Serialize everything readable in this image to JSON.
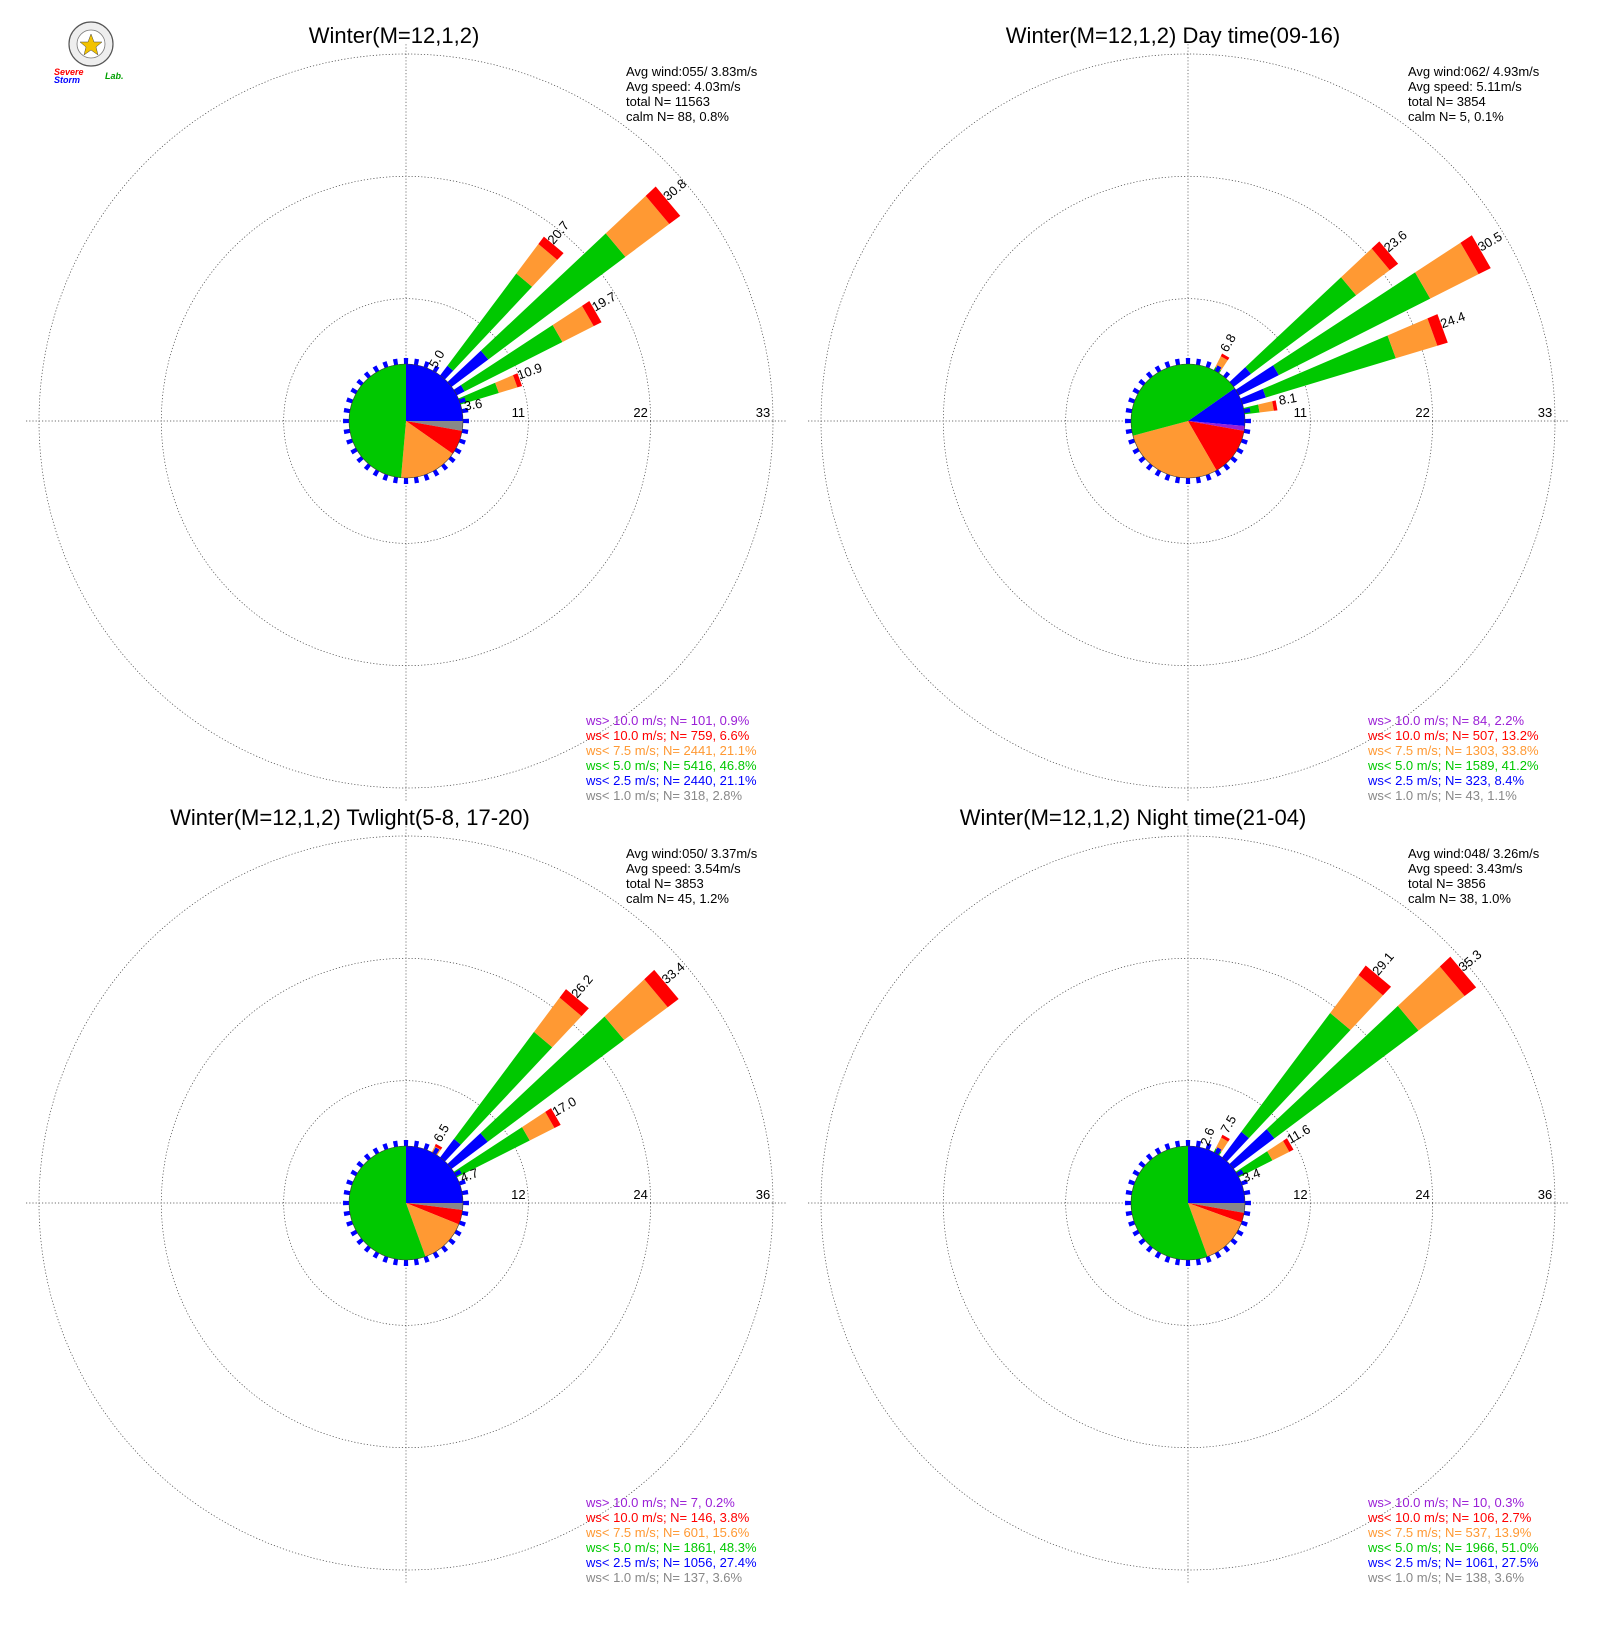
{
  "logo": {
    "text_a": "Severe",
    "text_b": "Storm",
    "text_c": "Lab."
  },
  "colors": {
    "gt10": "#9a1fd6",
    "lt10": "#ff0000",
    "lt7_5": "#ff9933",
    "lt5": "#00c800",
    "lt2_5": "#0000ff",
    "lt1": "#888888"
  },
  "chart_data": [
    {
      "type": "wind-rose",
      "title": "Winter(M=12,1,2)",
      "stats": [
        "Avg wind:055/ 3.83m/s",
        "Avg speed: 4.03m/s",
        "total N=      11563",
        "calm N=      88,   0.8%"
      ],
      "ring_labels": [
        "11",
        "22",
        "33"
      ],
      "rmax": 33,
      "radial_values": [
        {
          "dir_deg": 30,
          "label": "5.0",
          "value": 5.0
        },
        {
          "dir_deg": 40,
          "label": "20.7",
          "value": 20.7
        },
        {
          "dir_deg": 50,
          "label": "30.8",
          "value": 30.8
        },
        {
          "dir_deg": 60,
          "label": "19.7",
          "value": 19.7
        },
        {
          "dir_deg": 70,
          "label": "10.9",
          "value": 10.9
        },
        {
          "dir_deg": 80,
          "label": "3.6",
          "value": 3.6
        }
      ],
      "center_pie": [
        {
          "cls": "lt2_5",
          "from": 0,
          "to": 90
        },
        {
          "cls": "lt1",
          "from": 90,
          "to": 100
        },
        {
          "cls": "lt10",
          "from": 100,
          "to": 125
        },
        {
          "cls": "lt7_5",
          "from": 125,
          "to": 185
        },
        {
          "cls": "lt5",
          "from": 185,
          "to": 360
        }
      ],
      "legend": [
        {
          "cls": "gt10",
          "text": "ws> 10.0 m/s; N=   101,  0.9%"
        },
        {
          "cls": "lt10",
          "text": "ws< 10.0 m/s; N=   759,  6.6%"
        },
        {
          "cls": "lt7_5",
          "text": "ws<  7.5 m/s; N=  2441, 21.1%"
        },
        {
          "cls": "lt5",
          "text": "ws<  5.0 m/s; N=  5416, 46.8%"
        },
        {
          "cls": "lt2_5",
          "text": "ws<  2.5 m/s; N=  2440, 21.1%"
        },
        {
          "cls": "lt1",
          "text": "ws<  1.0 m/s; N=   318,  2.8%"
        }
      ]
    },
    {
      "type": "wind-rose",
      "title": "Winter(M=12,1,2) Day time(09-16)",
      "stats": [
        "Avg wind:062/ 4.93m/s",
        "Avg speed: 5.11m/s",
        "total N=       3854",
        "calm N=       5,   0.1%"
      ],
      "ring_labels": [
        "11",
        "22",
        "33"
      ],
      "rmax": 33,
      "radial_values": [
        {
          "dir_deg": 30,
          "label": "6.8",
          "value": 6.8
        },
        {
          "dir_deg": 50,
          "label": "23.6",
          "value": 23.6
        },
        {
          "dir_deg": 60,
          "label": "30.5",
          "value": 30.5
        },
        {
          "dir_deg": 70,
          "label": "24.4",
          "value": 24.4
        },
        {
          "dir_deg": 80,
          "label": "8.1",
          "value": 8.1
        }
      ],
      "center_pie": [
        {
          "cls": "lt2_5",
          "from": 55,
          "to": 95
        },
        {
          "cls": "gt10",
          "from": 95,
          "to": 100
        },
        {
          "cls": "lt10",
          "from": 100,
          "to": 150
        },
        {
          "cls": "lt7_5",
          "from": 150,
          "to": 255
        },
        {
          "cls": "lt5",
          "from": 255,
          "to": 415
        }
      ],
      "legend": [
        {
          "cls": "gt10",
          "text": "ws> 10.0 m/s; N=    84,  2.2%"
        },
        {
          "cls": "lt10",
          "text": "ws< 10.0 m/s; N=   507, 13.2%"
        },
        {
          "cls": "lt7_5",
          "text": "ws<  7.5 m/s; N=  1303, 33.8%"
        },
        {
          "cls": "lt5",
          "text": "ws<  5.0 m/s; N=  1589, 41.2%"
        },
        {
          "cls": "lt2_5",
          "text": "ws<  2.5 m/s; N=   323,  8.4%"
        },
        {
          "cls": "lt1",
          "text": "ws<  1.0 m/s; N=    43,  1.1%"
        }
      ]
    },
    {
      "type": "wind-rose",
      "title": "Winter(M=12,1,2) Twlight(5-8, 17-20)",
      "stats": [
        "Avg wind:050/ 3.37m/s",
        "Avg speed: 3.54m/s",
        "total N=       3853",
        "calm N=      45,   1.2%"
      ],
      "ring_labels": [
        "12",
        "24",
        "36"
      ],
      "rmax": 36,
      "radial_values": [
        {
          "dir_deg": 30,
          "label": "6.5",
          "value": 6.5
        },
        {
          "dir_deg": 40,
          "label": "26.2",
          "value": 26.2
        },
        {
          "dir_deg": 50,
          "label": "33.4",
          "value": 33.4
        },
        {
          "dir_deg": 60,
          "label": "17.0",
          "value": 17.0
        },
        {
          "dir_deg": 70,
          "label": "4.7",
          "value": 4.7
        }
      ],
      "center_pie": [
        {
          "cls": "lt2_5",
          "from": 0,
          "to": 90
        },
        {
          "cls": "lt1",
          "from": 90,
          "to": 97
        },
        {
          "cls": "lt10",
          "from": 97,
          "to": 112
        },
        {
          "cls": "lt7_5",
          "from": 112,
          "to": 160
        },
        {
          "cls": "lt5",
          "from": 160,
          "to": 360
        }
      ],
      "legend": [
        {
          "cls": "gt10",
          "text": "ws> 10.0 m/s; N=     7,  0.2%"
        },
        {
          "cls": "lt10",
          "text": "ws< 10.0 m/s; N=   146,  3.8%"
        },
        {
          "cls": "lt7_5",
          "text": "ws<  7.5 m/s; N=   601, 15.6%"
        },
        {
          "cls": "lt5",
          "text": "ws<  5.0 m/s; N=  1861, 48.3%"
        },
        {
          "cls": "lt2_5",
          "text": "ws<  2.5 m/s; N=  1056, 27.4%"
        },
        {
          "cls": "lt1",
          "text": "ws<  1.0 m/s; N=   137,  3.6%"
        }
      ]
    },
    {
      "type": "wind-rose",
      "title": "Winter(M=12,1,2) Night time(21-04)",
      "stats": [
        "Avg wind:048/ 3.26m/s",
        "Avg speed: 3.43m/s",
        "total N=       3856",
        "calm N=      38,   1.0%"
      ],
      "ring_labels": [
        "12",
        "24",
        "36"
      ],
      "rmax": 36,
      "radial_values": [
        {
          "dir_deg": 20,
          "label": "2.6",
          "value": 2.6
        },
        {
          "dir_deg": 30,
          "label": "7.5",
          "value": 7.5
        },
        {
          "dir_deg": 40,
          "label": "29.1",
          "value": 29.1
        },
        {
          "dir_deg": 50,
          "label": "35.3",
          "value": 35.3
        },
        {
          "dir_deg": 60,
          "label": "11.6",
          "value": 11.6
        },
        {
          "dir_deg": 70,
          "label": "3.4",
          "value": 3.4
        }
      ],
      "center_pie": [
        {
          "cls": "lt2_5",
          "from": 0,
          "to": 90
        },
        {
          "cls": "lt1",
          "from": 90,
          "to": 100
        },
        {
          "cls": "lt10",
          "from": 100,
          "to": 110
        },
        {
          "cls": "lt7_5",
          "from": 110,
          "to": 160
        },
        {
          "cls": "lt5",
          "from": 160,
          "to": 360
        }
      ],
      "legend": [
        {
          "cls": "gt10",
          "text": "ws> 10.0 m/s; N=    10,  0.3%"
        },
        {
          "cls": "lt10",
          "text": "ws< 10.0 m/s; N=   106,  2.7%"
        },
        {
          "cls": "lt7_5",
          "text": "ws<  7.5 m/s; N=   537, 13.9%"
        },
        {
          "cls": "lt5",
          "text": "ws<  5.0 m/s; N=  1966, 51.0%"
        },
        {
          "cls": "lt2_5",
          "text": "ws<  2.5 m/s; N=  1061, 27.5%"
        },
        {
          "cls": "lt1",
          "text": "ws<  1.0 m/s; N=   138,  3.6%"
        }
      ]
    }
  ]
}
